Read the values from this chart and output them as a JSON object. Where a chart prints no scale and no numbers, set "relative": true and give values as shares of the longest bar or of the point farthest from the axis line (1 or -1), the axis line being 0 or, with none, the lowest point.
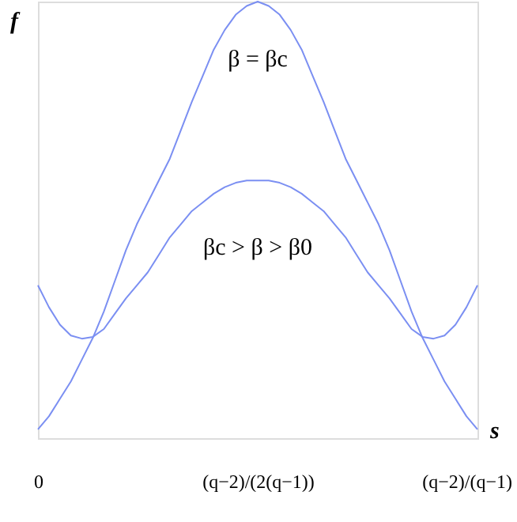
{
  "chart_data": {
    "type": "line",
    "relative": true,
    "xlabel": "s",
    "ylabel": "f",
    "categories": [
      "0",
      null,
      null,
      null,
      null,
      null,
      null,
      null,
      null,
      null,
      null,
      null,
      null,
      null,
      null,
      null,
      null,
      null,
      null,
      null,
      "(q−2)/(2(q−1))",
      null,
      null,
      null,
      null,
      null,
      null,
      null,
      null,
      null,
      null,
      null,
      null,
      null,
      null,
      null,
      null,
      null,
      null,
      "(q−2)/(q−1)",
      null
    ],
    "tick_labels": "x",
    "grid": false,
    "marker": "none",
    "line_style": "solid",
    "series": [
      {
        "color": "#7b8ff2",
        "values": [
          0.02,
          0.05,
          0.09,
          0.13,
          0.18,
          0.23,
          0.29,
          0.36,
          0.43,
          0.49,
          0.54,
          0.59,
          0.64,
          0.705,
          0.77,
          0.83,
          0.89,
          0.935,
          0.97,
          0.99,
          1.0,
          0.99,
          0.97,
          0.935,
          0.89,
          0.83,
          0.77,
          0.705,
          0.64,
          0.59,
          0.54,
          0.49,
          0.43,
          0.36,
          0.29,
          0.23,
          0.18,
          0.13,
          0.09,
          0.05,
          0.02
        ]
      },
      {
        "color": "#7b8ff2",
        "values": [
          0.35,
          0.3,
          0.26,
          0.235,
          0.228,
          0.232,
          0.25,
          0.285,
          0.32,
          0.35,
          0.38,
          0.42,
          0.46,
          0.49,
          0.52,
          0.54,
          0.56,
          0.575,
          0.585,
          0.59,
          0.59,
          0.59,
          0.585,
          0.575,
          0.56,
          0.54,
          0.52,
          0.49,
          0.46,
          0.42,
          0.38,
          0.35,
          0.32,
          0.285,
          0.25,
          0.232,
          0.228,
          0.235,
          0.26,
          0.3,
          0.35
        ]
      }
    ],
    "annotations": [
      "β = βc",
      "βc > β > β0"
    ]
  }
}
